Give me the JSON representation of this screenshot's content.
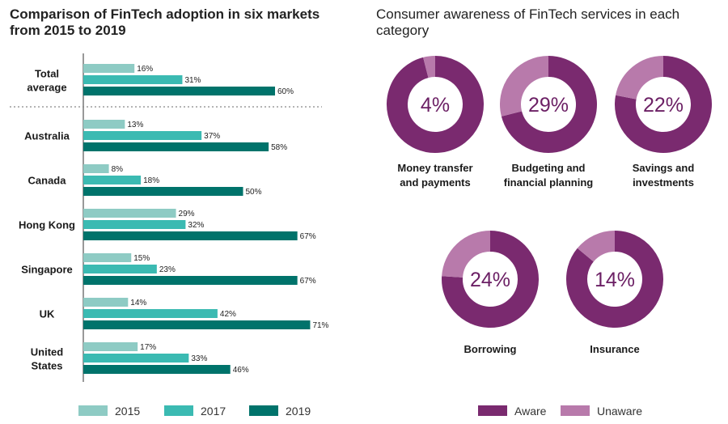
{
  "colors": {
    "y2015": "#8ecbc4",
    "y2017": "#3bbab2",
    "y2019": "#00736b",
    "aware": "#7a2a6f",
    "unaware": "#b87aab",
    "axis": "#555555",
    "divider": "#888888"
  },
  "chart_data": [
    {
      "type": "bar",
      "orientation": "horizontal",
      "title": "Comparison of FinTech adoption in six markets from 2015 to 2019",
      "categories": [
        "Total average",
        "Australia",
        "Canada",
        "Hong Kong",
        "Singapore",
        "UK",
        "United States"
      ],
      "series": [
        {
          "name": "2015",
          "values": [
            16,
            13,
            8,
            29,
            15,
            14,
            17
          ]
        },
        {
          "name": "2017",
          "values": [
            31,
            37,
            18,
            32,
            23,
            42,
            33
          ]
        },
        {
          "name": "2019",
          "values": [
            60,
            58,
            50,
            67,
            67,
            71,
            46
          ]
        }
      ],
      "unit": "%",
      "xlim": [
        0,
        100
      ],
      "legend": [
        "2015",
        "2017",
        "2019"
      ],
      "legend_position": "bottom"
    },
    {
      "type": "pie",
      "style": "donut",
      "title": "Consumer awareness of FinTech services in each category",
      "legend": [
        "Aware",
        "Unaware"
      ],
      "legend_position": "bottom-right",
      "items": [
        {
          "label": "Money transfer and payments",
          "unaware": 4,
          "aware": 96,
          "display": "4%"
        },
        {
          "label": "Budgeting and financial planning",
          "unaware": 29,
          "aware": 71,
          "display": "29%"
        },
        {
          "label": "Savings and investments",
          "unaware": 22,
          "aware": 78,
          "display": "22%"
        },
        {
          "label": "Borrowing",
          "unaware": 24,
          "aware": 76,
          "display": "24%"
        },
        {
          "label": "Insurance",
          "unaware": 14,
          "aware": 86,
          "display": "14%"
        }
      ]
    }
  ]
}
